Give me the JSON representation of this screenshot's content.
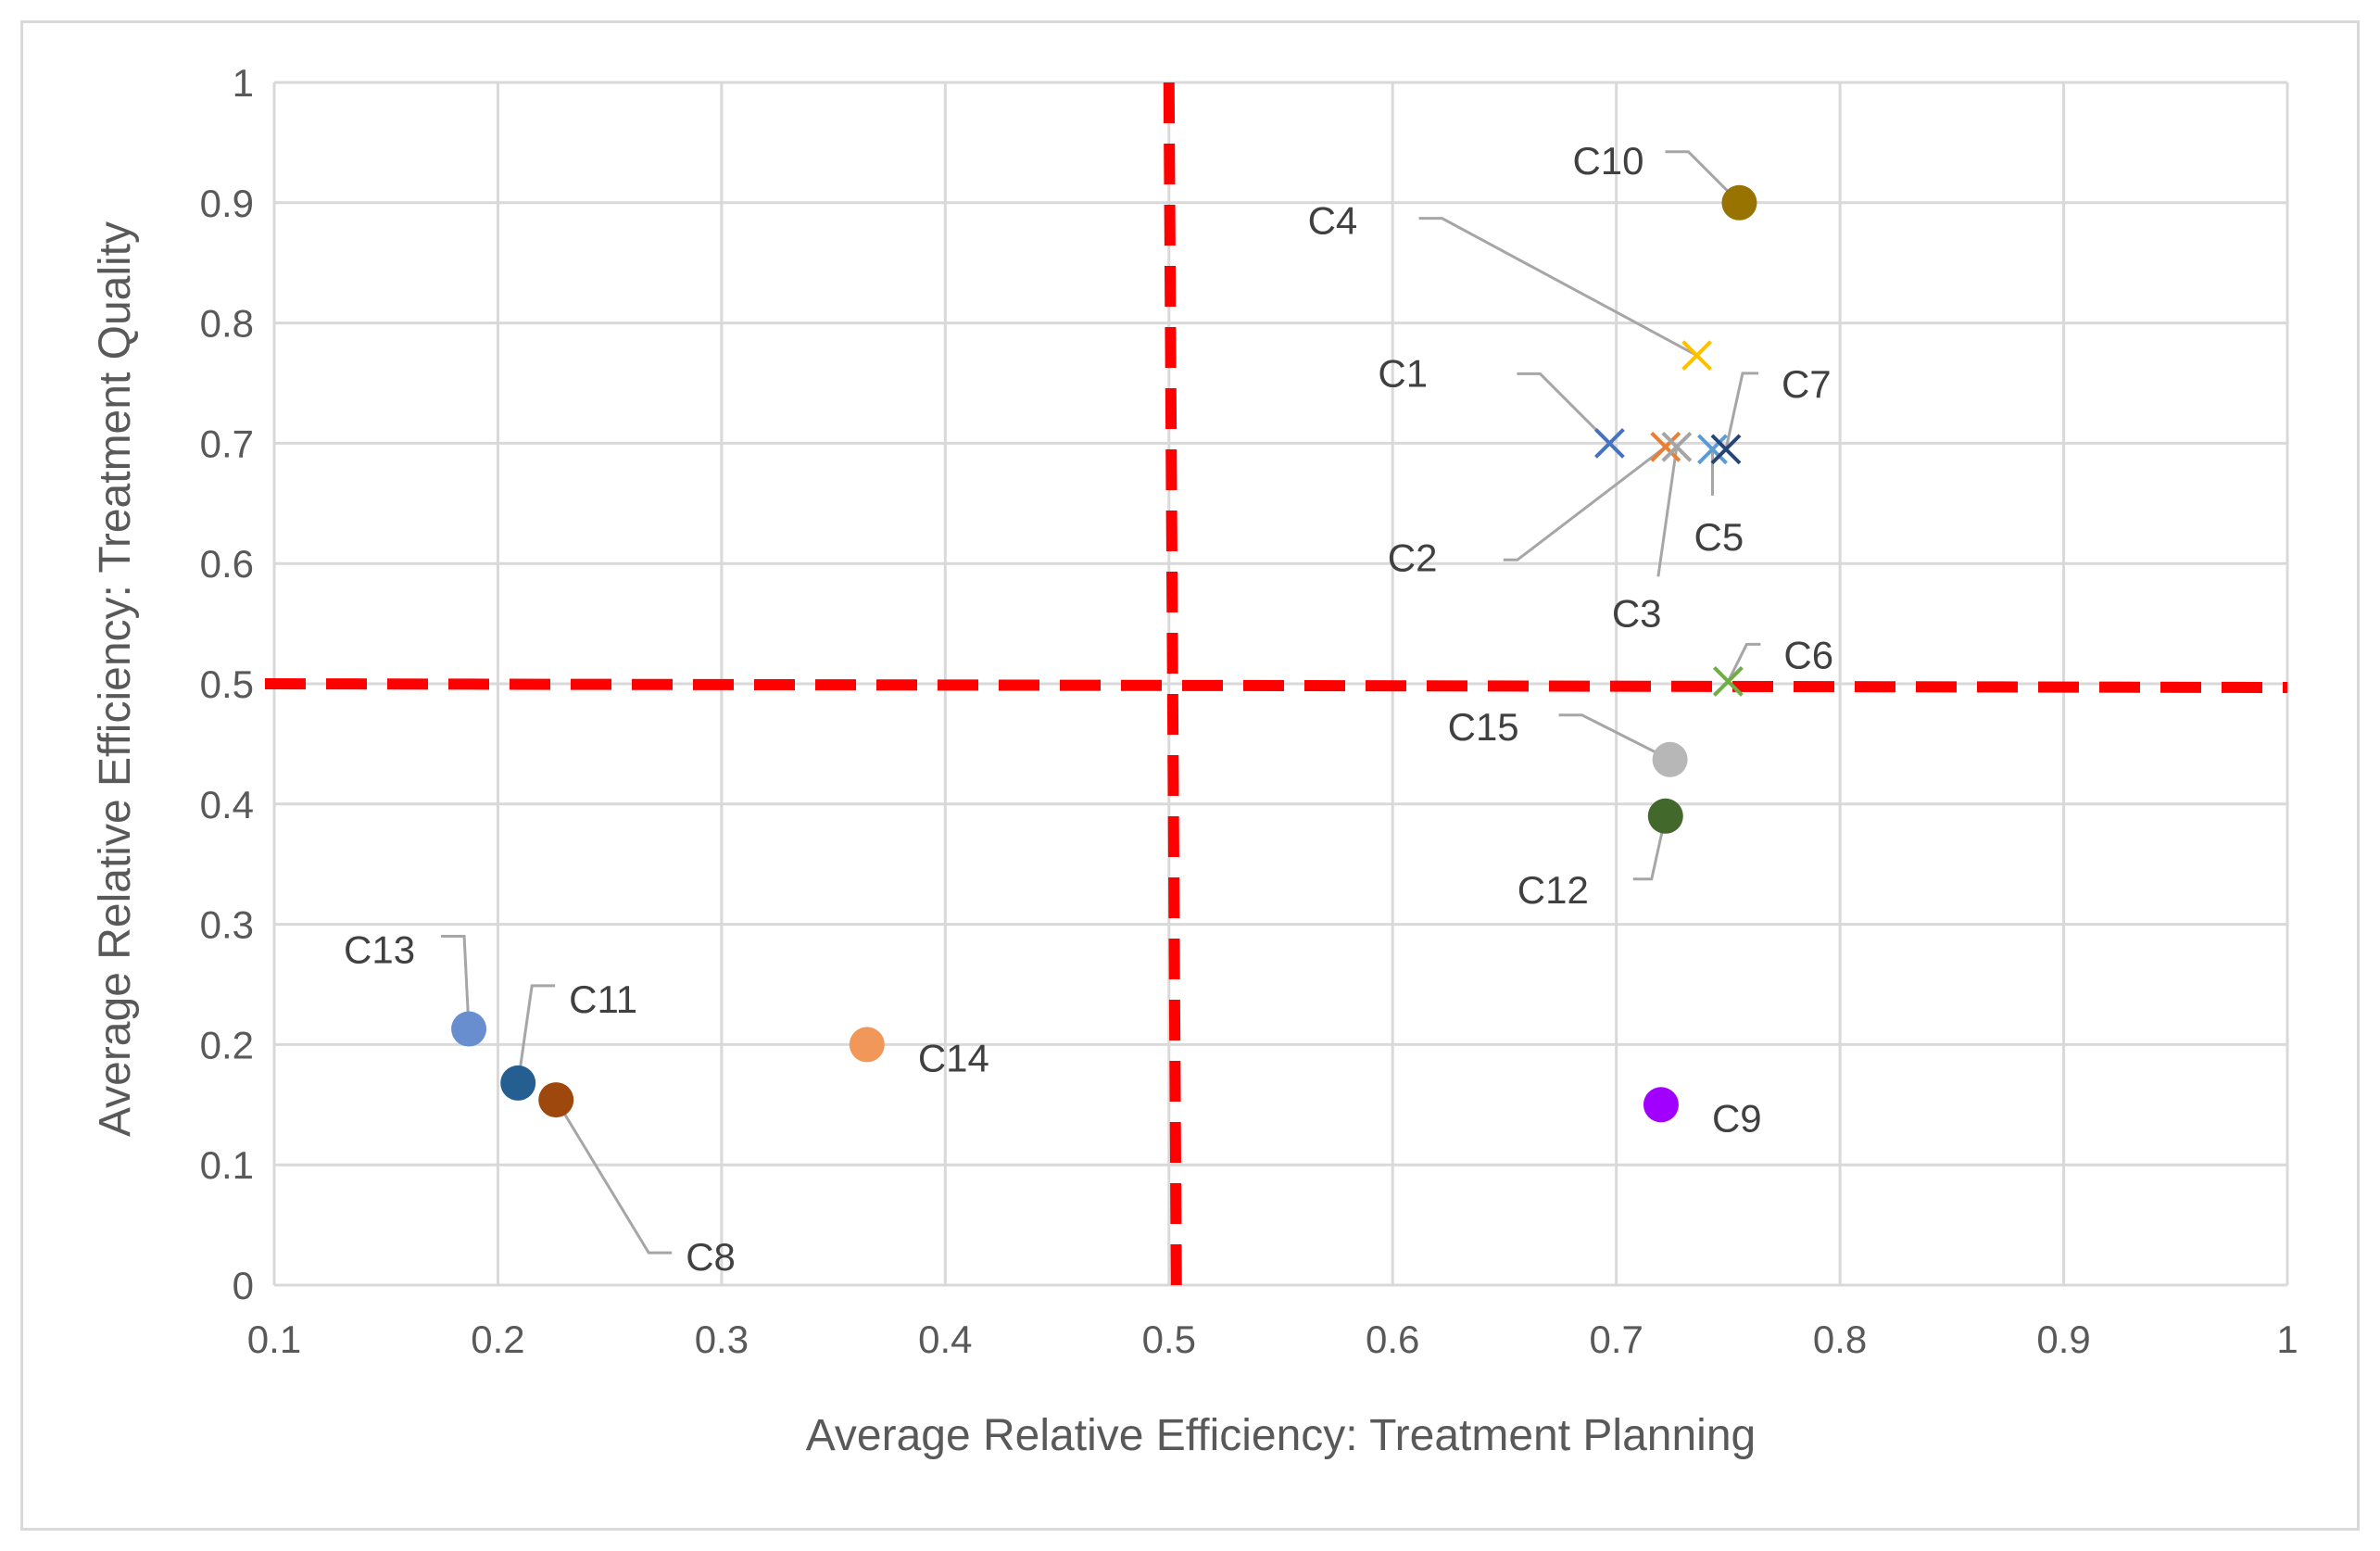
{
  "chart_data": {
    "type": "scatter",
    "title": "",
    "xlabel": "Average Relative Efficiency: Treatment Planning",
    "ylabel": "Average Relative Efficiency: Treatment Quality",
    "xlim": [
      0.1,
      1
    ],
    "ylim": [
      0,
      1
    ],
    "xticks": [
      "0.1",
      "0.2",
      "0.3",
      "0.4",
      "0.5",
      "0.6",
      "0.7",
      "0.8",
      "0.9",
      "1"
    ],
    "yticks": [
      "0",
      "0.1",
      "0.2",
      "0.3",
      "0.4",
      "0.5",
      "0.6",
      "0.7",
      "0.8",
      "0.9",
      "1"
    ],
    "grid": true,
    "threshold_lines": {
      "x": 0.5,
      "y": 0.5,
      "color": "#ff0000",
      "style": "dashed"
    },
    "points": [
      {
        "label": "C1",
        "x": 0.697,
        "y": 0.7,
        "marker": "x",
        "color": "#4472c4"
      },
      {
        "label": "C2",
        "x": 0.722,
        "y": 0.697,
        "marker": "x",
        "color": "#ed7d31"
      },
      {
        "label": "C3",
        "x": 0.727,
        "y": 0.697,
        "marker": "x",
        "color": "#a5a5a5"
      },
      {
        "label": "C4",
        "x": 0.736,
        "y": 0.773,
        "marker": "x",
        "color": "#ffc000"
      },
      {
        "label": "C5",
        "x": 0.743,
        "y": 0.695,
        "marker": "x",
        "color": "#5b9bd5"
      },
      {
        "label": "C6",
        "x": 0.75,
        "y": 0.502,
        "marker": "x",
        "color": "#70ad47"
      },
      {
        "label": "C7",
        "x": 0.749,
        "y": 0.695,
        "marker": "x",
        "color": "#264478"
      },
      {
        "label": "C8",
        "x": 0.226,
        "y": 0.154,
        "marker": "circle",
        "color": "#9e480e"
      },
      {
        "label": "C9",
        "x": 0.72,
        "y": 0.15,
        "marker": "circle",
        "color": "#a100ff"
      },
      {
        "label": "C10",
        "x": 0.755,
        "y": 0.9,
        "marker": "circle",
        "color": "#997300"
      },
      {
        "label": "C11",
        "x": 0.209,
        "y": 0.168,
        "marker": "circle",
        "color": "#255e91"
      },
      {
        "label": "C12",
        "x": 0.722,
        "y": 0.39,
        "marker": "circle",
        "color": "#43682b"
      },
      {
        "label": "C13",
        "x": 0.187,
        "y": 0.213,
        "marker": "circle",
        "color": "#698ed0"
      },
      {
        "label": "C14",
        "x": 0.365,
        "y": 0.2,
        "marker": "circle",
        "color": "#f1975a"
      },
      {
        "label": "C15",
        "x": 0.724,
        "y": 0.437,
        "marker": "circle",
        "color": "#b7b7b7"
      }
    ]
  }
}
